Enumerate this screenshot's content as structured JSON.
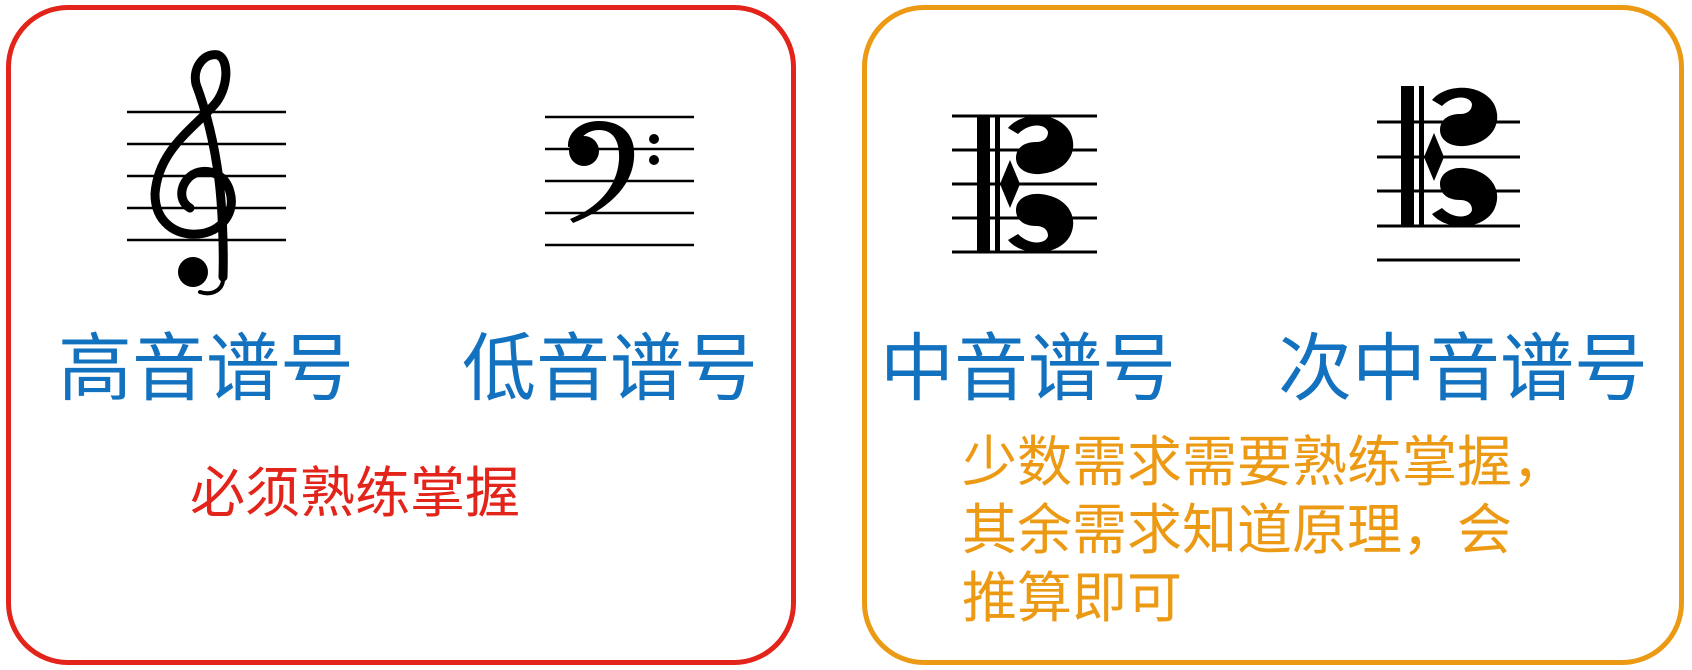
{
  "colors": {
    "label_blue": "#1372bf",
    "left_accent": "#e2241a",
    "right_accent": "#ec9a14",
    "ink": "#000000"
  },
  "left_panel": {
    "treble_label": "高音谱号",
    "bass_label": "低音谱号",
    "note": "必须熟练掌握"
  },
  "right_panel": {
    "alto_label": "中音谱号",
    "tenor_label": "次中音谱号",
    "note_lines": [
      "少数需求需要熟练掌握，",
      "其余需求知道原理，会",
      "推算即可"
    ]
  }
}
